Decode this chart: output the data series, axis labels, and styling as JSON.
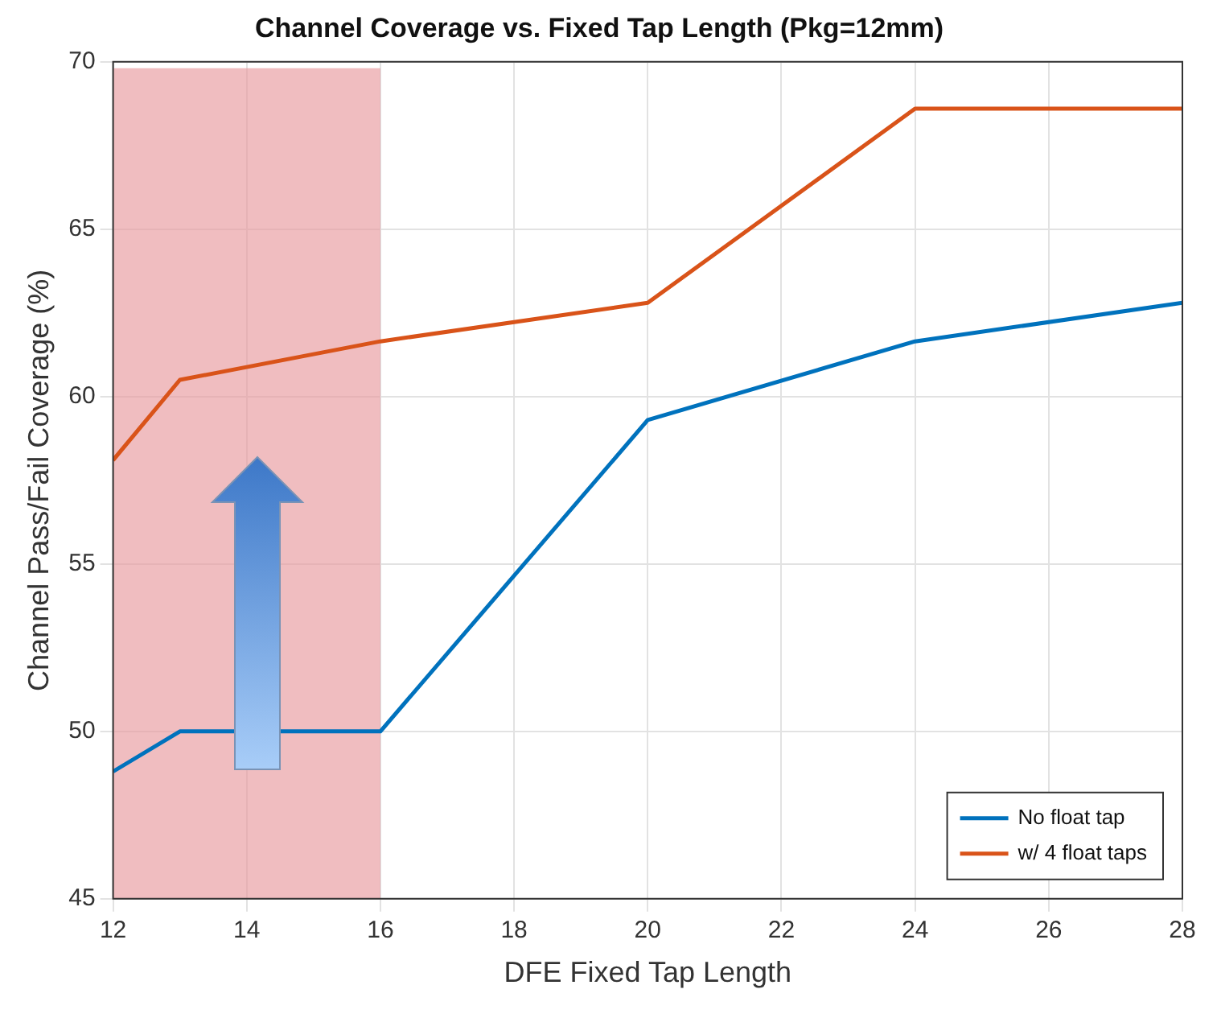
{
  "chart_data": {
    "type": "line",
    "title": "Channel Coverage vs. Fixed Tap Length (Pkg=12mm)",
    "xlabel": "DFE Fixed Tap Length",
    "ylabel": "Channel Pass/Fail Coverage (%)",
    "x": [
      12,
      13,
      16,
      20,
      24,
      28
    ],
    "series": [
      {
        "name": "No float tap",
        "color": "#0072bd",
        "values": [
          48.8,
          50,
          50,
          59.3,
          61.65,
          62.8
        ]
      },
      {
        "name": "w/ 4 float taps",
        "color": "#d95319",
        "values": [
          58.1,
          60.5,
          61.65,
          62.8,
          68.6,
          68.6
        ]
      }
    ],
    "xlim": [
      12,
      28
    ],
    "xticks": [
      12,
      14,
      16,
      18,
      20,
      22,
      24,
      26,
      28
    ],
    "ylim": [
      45,
      70
    ],
    "yticks": [
      45,
      50,
      55,
      60,
      65,
      70
    ],
    "bands": [
      {
        "axis": "x",
        "from": 12,
        "to": 16,
        "color": "#e89a9e"
      }
    ],
    "grid": true,
    "legend": "bottom right",
    "marker": "none",
    "line_style": "solid"
  }
}
